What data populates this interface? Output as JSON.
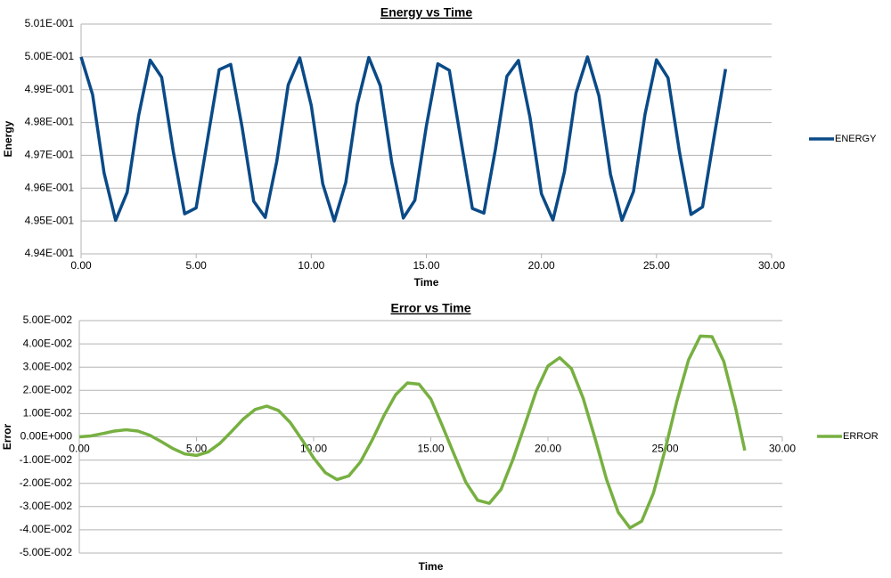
{
  "chart_data": [
    {
      "type": "line",
      "title": "Energy vs Time",
      "x_label": "Time",
      "y_label": "Energy",
      "x": [
        0,
        0.5,
        1,
        1.5,
        2,
        2.5,
        3,
        3.5,
        4,
        4.5,
        5,
        5.5,
        6,
        6.5,
        7,
        7.5,
        8,
        8.5,
        9,
        9.5,
        10,
        10.5,
        11,
        11.5,
        12,
        12.5,
        13,
        13.5,
        14,
        14.5,
        15,
        15.5,
        16,
        16.5,
        17,
        17.5,
        18,
        18.5,
        19,
        19.5,
        20,
        20.5,
        21,
        21.5,
        22,
        22.5,
        23,
        23.5,
        24,
        24.5,
        25,
        25.5,
        26,
        26.5,
        27,
        27.5,
        28
      ],
      "series": [
        {
          "name": "ENERGY",
          "color": "#0a4a87",
          "values": [
            0.5,
            0.49885,
            0.49646,
            0.49502,
            0.49587,
            0.49821,
            0.4999,
            0.49938,
            0.49714,
            0.49522,
            0.4954,
            0.49751,
            0.49961,
            0.49977,
            0.49784,
            0.4956,
            0.49511,
            0.49681,
            0.49915,
            0.49997,
            0.49852,
            0.49613,
            0.495,
            0.49617,
            0.49856,
            0.49998,
            0.49912,
            0.49677,
            0.49509,
            0.49563,
            0.49789,
            0.49979,
            0.49959,
            0.49747,
            0.49538,
            0.49524,
            0.49718,
            0.49941,
            0.49989,
            0.49817,
            0.49583,
            0.49503,
            0.4965,
            0.49889,
            0.5,
            0.49881,
            0.49642,
            0.49502,
            0.4959,
            0.49825,
            0.49991,
            0.49936,
            0.49709,
            0.4952,
            0.49543,
            0.49756,
            0.49963
          ]
        }
      ],
      "xlim": [
        0,
        30
      ],
      "ylim": [
        0.494,
        0.501
      ],
      "xticks": [
        {
          "value": 0,
          "label": "0.00"
        },
        {
          "value": 5,
          "label": "5.00"
        },
        {
          "value": 10,
          "label": "10.00"
        },
        {
          "value": 15,
          "label": "15.00"
        },
        {
          "value": 20,
          "label": "20.00"
        },
        {
          "value": 25,
          "label": "25.00"
        },
        {
          "value": 30,
          "label": "30.00"
        }
      ],
      "yticks": [
        {
          "value": 0.494,
          "label": "4.94E-001"
        },
        {
          "value": 0.495,
          "label": "4.95E-001"
        },
        {
          "value": 0.496,
          "label": "4.96E-001"
        },
        {
          "value": 0.497,
          "label": "4.97E-001"
        },
        {
          "value": 0.498,
          "label": "4.98E-001"
        },
        {
          "value": 0.499,
          "label": "4.99E-001"
        },
        {
          "value": 0.5,
          "label": "5.00E-001"
        },
        {
          "value": 0.501,
          "label": "5.01E-001"
        }
      ],
      "grid": true,
      "legend": "right"
    },
    {
      "type": "line",
      "title": "Error vs Time",
      "x_label": "Time",
      "y_label": "Error",
      "x": [
        0,
        0.5,
        1,
        1.5,
        2,
        2.5,
        3,
        3.5,
        4,
        4.5,
        5,
        5.5,
        6,
        6.5,
        7,
        7.5,
        8,
        8.5,
        9,
        9.5,
        10,
        10.5,
        11,
        11.5,
        12,
        12.5,
        13,
        13.5,
        14,
        14.5,
        15,
        15.5,
        16,
        16.5,
        17,
        17.5,
        18,
        18.5,
        19,
        19.5,
        20,
        20.5,
        21,
        21.5,
        22,
        22.5,
        23,
        23.5,
        24,
        24.5,
        25,
        25.5,
        26,
        26.5,
        27,
        27.5,
        28,
        28.4
      ],
      "series": [
        {
          "name": "ERROR",
          "color": "#77b041",
          "values": [
            0,
            0.0004,
            0.00141,
            0.0025,
            0.00304,
            0.0025,
            0.00071,
            -0.00205,
            -0.00506,
            -0.00735,
            -0.00801,
            -0.00648,
            -0.0028,
            0.00233,
            0.00768,
            0.01175,
            0.01322,
            0.01133,
            0.00619,
            -0.00119,
            -0.00908,
            -0.01543,
            -0.01837,
            -0.01681,
            -0.01075,
            -0.00138,
            0.00912,
            0.01812,
            0.02316,
            0.02264,
            0.01629,
            0.00456,
            -0.00769,
            -0.01962,
            -0.02729,
            -0.0286,
            -0.02257,
            -0.00987,
            0.00476,
            0.01972,
            0.03049,
            0.03405,
            0.02934,
            0.01665,
            -0.00033,
            -0.01831,
            -0.0325,
            -0.03918,
            -0.0363,
            -0.0242,
            -0.00553,
            0.01527,
            0.03311,
            0.04333,
            0.04312,
            0.03253,
            0.01267,
            -0.0059
          ]
        }
      ],
      "xlim": [
        0,
        30
      ],
      "ylim": [
        -0.05,
        0.05
      ],
      "xticks": [
        {
          "value": 0,
          "label": "0.00"
        },
        {
          "value": 5,
          "label": "5.00"
        },
        {
          "value": 10,
          "label": "10.00"
        },
        {
          "value": 15,
          "label": "15.00"
        },
        {
          "value": 20,
          "label": "20.00"
        },
        {
          "value": 25,
          "label": "25.00"
        },
        {
          "value": 30,
          "label": "30.00"
        }
      ],
      "yticks": [
        {
          "value": -0.05,
          "label": "-5.00E-002"
        },
        {
          "value": -0.04,
          "label": "-4.00E-002"
        },
        {
          "value": -0.03,
          "label": "-3.00E-002"
        },
        {
          "value": -0.02,
          "label": "-2.00E-002"
        },
        {
          "value": -0.01,
          "label": "-1.00E-002"
        },
        {
          "value": 0,
          "label": "0.00E+000"
        },
        {
          "value": 0.01,
          "label": "1.00E-002"
        },
        {
          "value": 0.02,
          "label": "2.00E-002"
        },
        {
          "value": 0.03,
          "label": "3.00E-002"
        },
        {
          "value": 0.04,
          "label": "4.00E-002"
        },
        {
          "value": 0.05,
          "label": "5.00E-002"
        }
      ],
      "grid": true,
      "legend": "right"
    }
  ]
}
